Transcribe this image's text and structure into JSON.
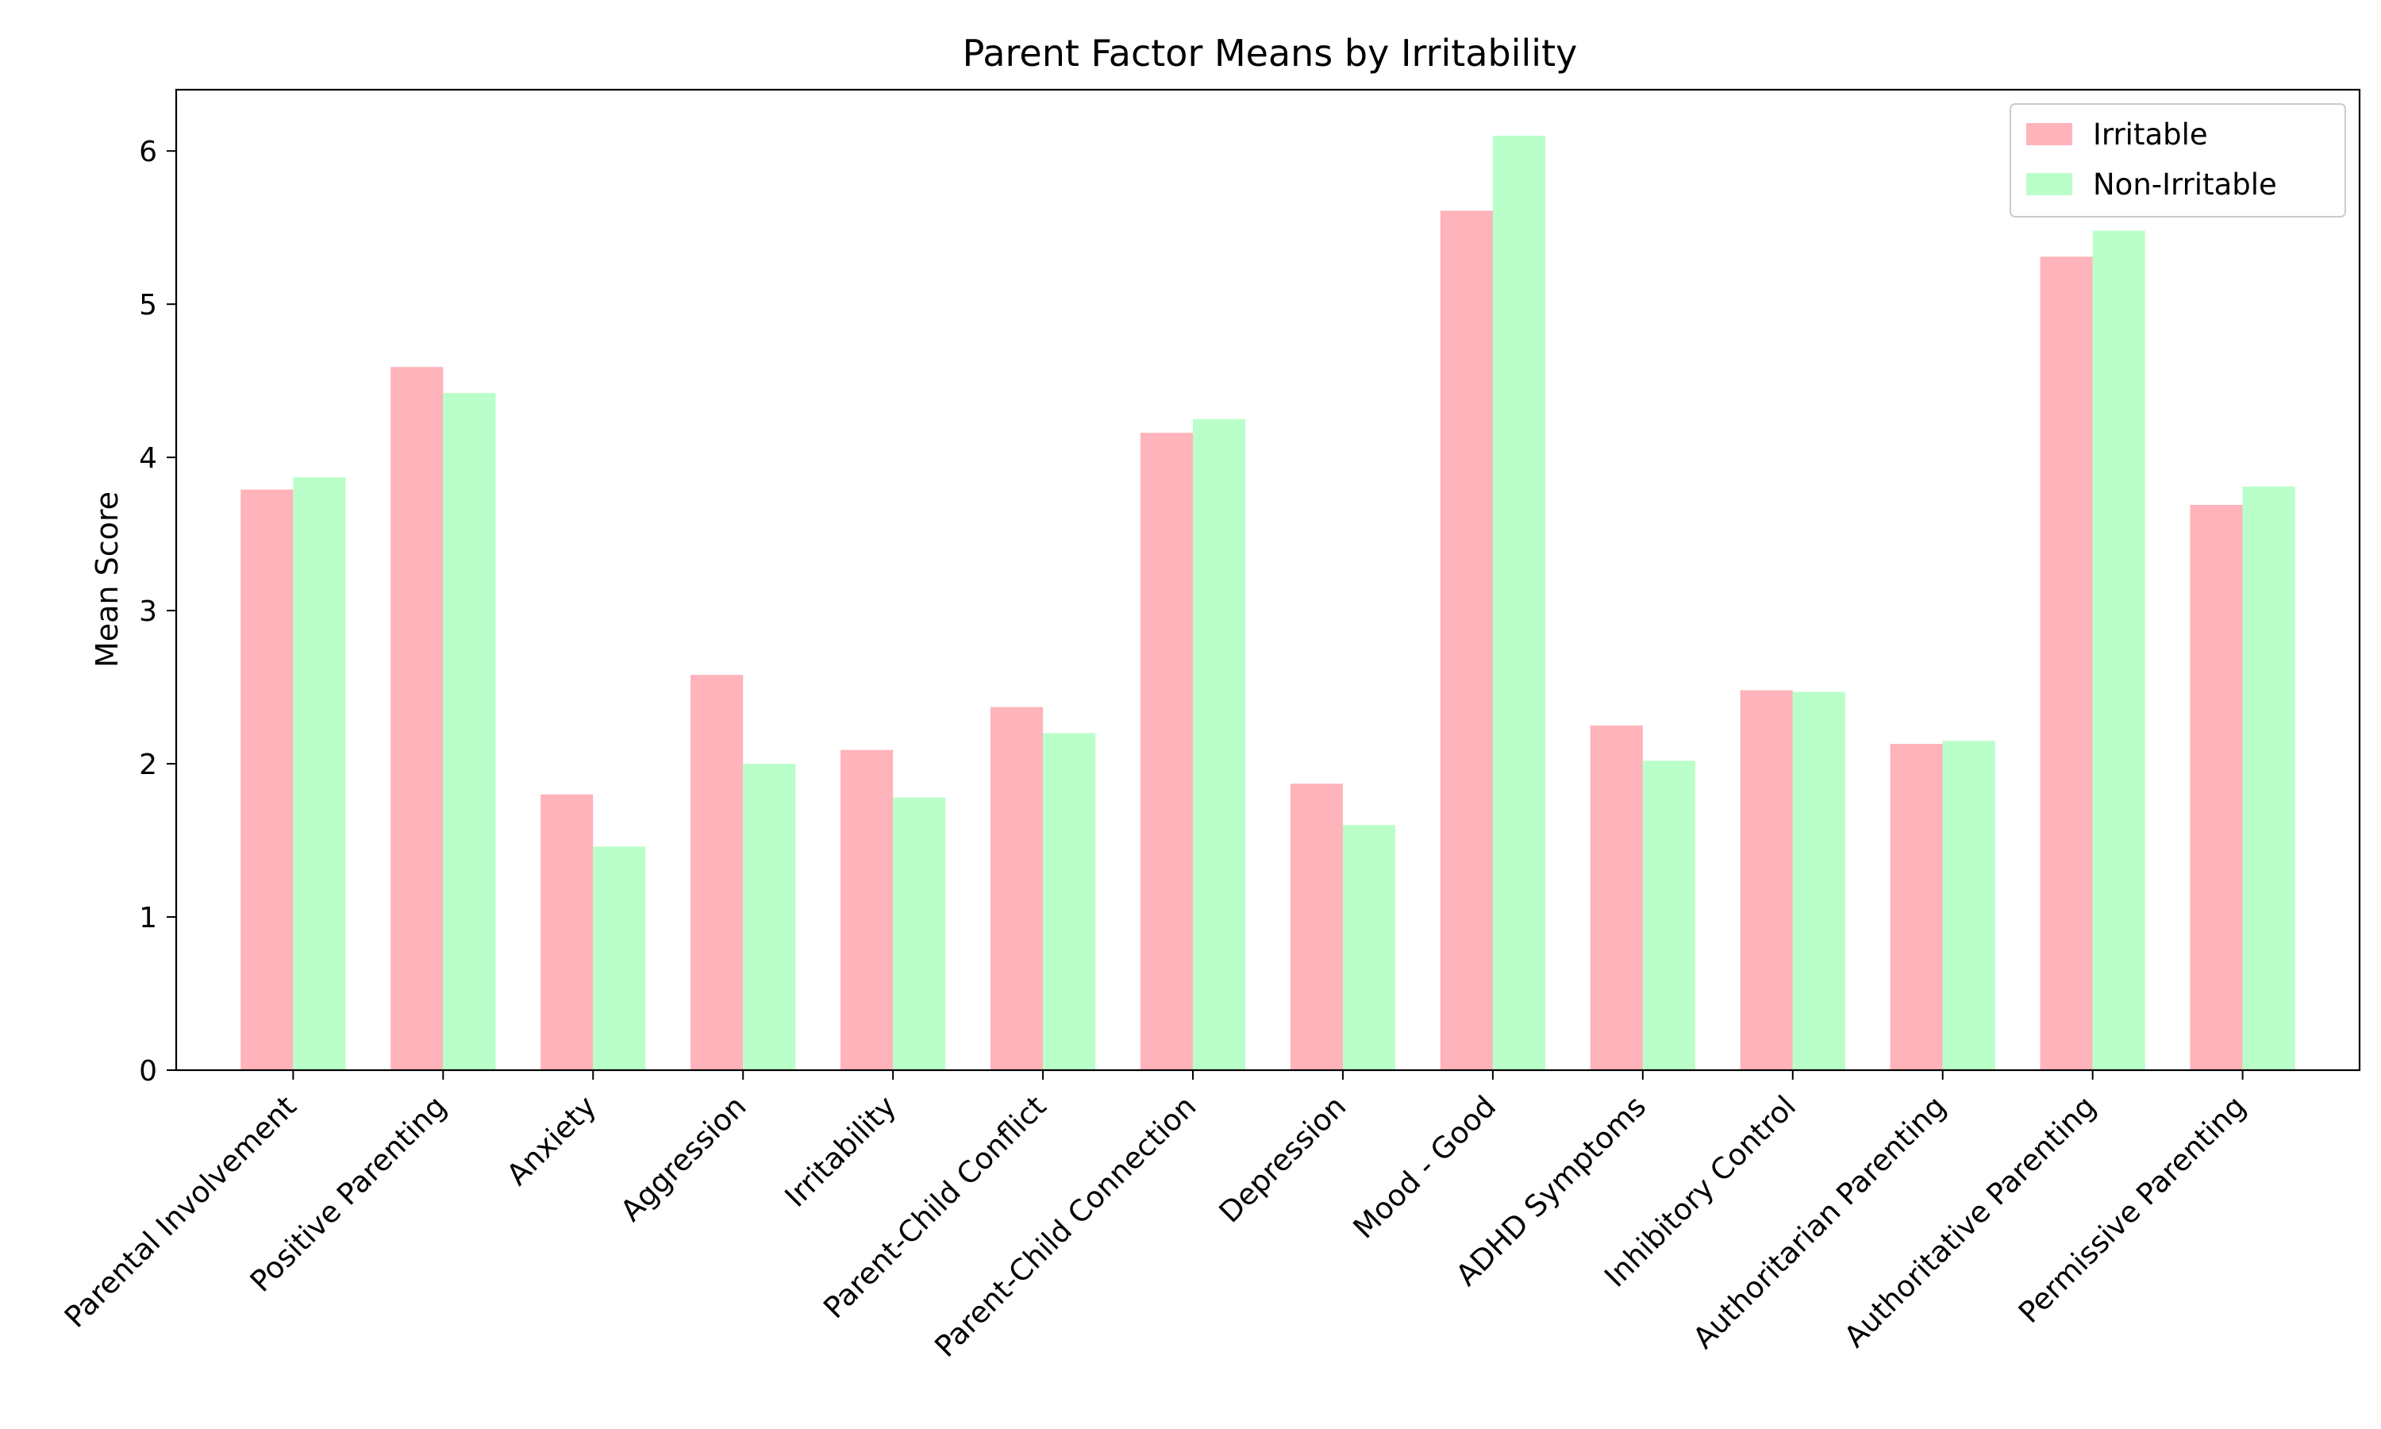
{
  "chart_data": {
    "type": "bar",
    "title": "Parent Factor Means by Irritability",
    "xlabel": "",
    "ylabel": "Mean Score",
    "ylim": [
      0,
      6.4
    ],
    "yticks": [
      0,
      1,
      2,
      3,
      4,
      5,
      6
    ],
    "grid": false,
    "legend_position": "top-right",
    "categories": [
      "Parental Involvement",
      "Positive Parenting",
      "Anxiety",
      "Aggression",
      "Irritability",
      "Parent-Child Conflict",
      "Parent-Child Connection",
      "Depression",
      "Mood - Good",
      "ADHD Symptoms",
      "Inhibitory Control",
      "Authoritarian Parenting",
      "Authoritative Parenting",
      "Permissive Parenting"
    ],
    "series": [
      {
        "name": "Irritable",
        "color": "#ffb3ba",
        "values": [
          3.79,
          4.59,
          1.8,
          2.58,
          2.09,
          2.37,
          4.16,
          1.87,
          5.61,
          2.25,
          2.48,
          2.13,
          5.31,
          3.69
        ]
      },
      {
        "name": "Non-Irritable",
        "color": "#baffc9",
        "values": [
          3.87,
          4.42,
          1.46,
          2.0,
          1.78,
          2.2,
          4.25,
          1.6,
          6.1,
          2.02,
          2.47,
          2.15,
          5.48,
          3.81
        ]
      }
    ]
  }
}
